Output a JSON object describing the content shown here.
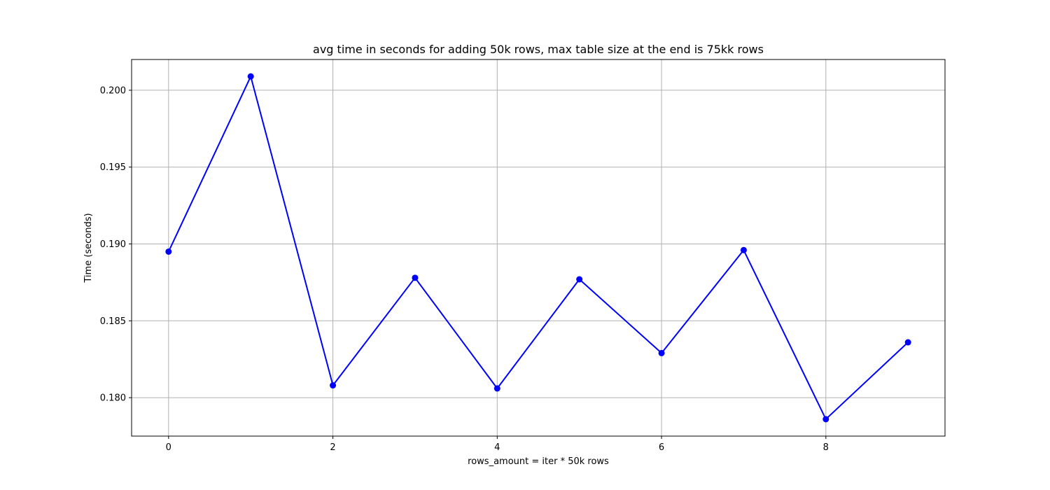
{
  "chart_data": {
    "type": "line",
    "title": "avg time in seconds for adding 50k rows, max table size at the end is 75kk rows",
    "xlabel": "rows_amount = iter * 50k rows",
    "ylabel": "Time (seconds)",
    "x": [
      0,
      1,
      2,
      3,
      4,
      5,
      6,
      7,
      8,
      9
    ],
    "series": [
      {
        "values": [
          0.1895,
          0.2009,
          0.1808,
          0.1878,
          0.1806,
          0.1877,
          0.1829,
          0.1896,
          0.1786,
          0.1836
        ],
        "color": "#0000ff",
        "marker": "circle"
      }
    ],
    "xlim": [
      -0.45,
      9.45
    ],
    "ylim": [
      0.1775,
      0.202
    ],
    "xticks": [
      0,
      2,
      4,
      6,
      8
    ],
    "xtick_labels": [
      "0",
      "2",
      "4",
      "6",
      "8"
    ],
    "yticks": [
      0.18,
      0.185,
      0.19,
      0.195,
      0.2
    ],
    "ytick_labels": [
      "0.180",
      "0.185",
      "0.190",
      "0.195",
      "0.200"
    ],
    "grid": true,
    "grid_color": "#b0b0b0"
  }
}
